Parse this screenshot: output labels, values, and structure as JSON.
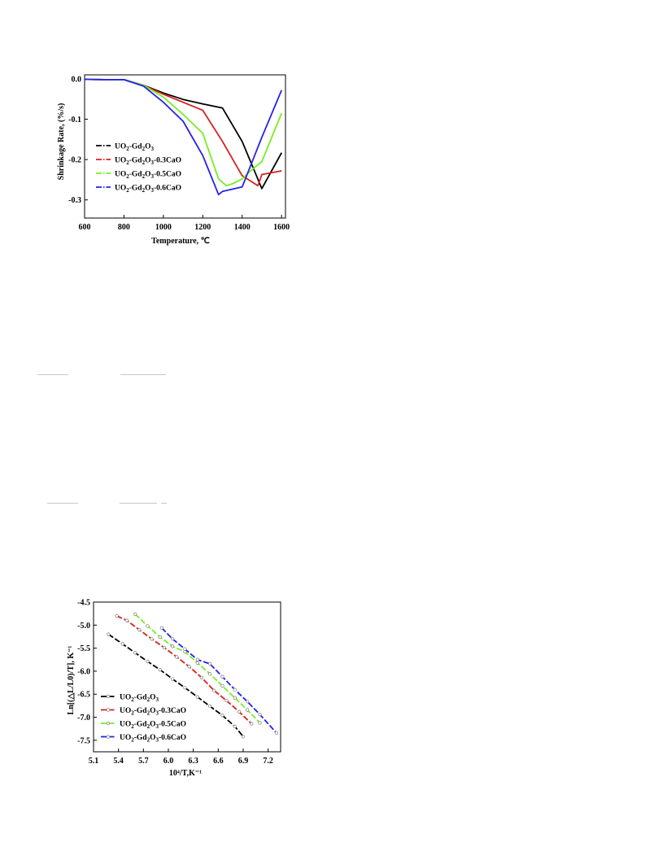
{
  "colors": {
    "black": "#000000",
    "red": "#d62020",
    "green": "#77ee22",
    "blue": "#2222ee"
  },
  "chart_data": [
    {
      "type": "line",
      "title": "",
      "xlabel": "Temperature, ℃",
      "ylabel": "Shrinkage Rate, (%/s)",
      "xlim": [
        600,
        1620
      ],
      "ylim": [
        -0.345,
        0.01
      ],
      "xticks": [
        "600",
        "800",
        "1000",
        "1200",
        "1400",
        "1600"
      ],
      "yticks": [
        "0.0",
        "-0.1",
        "-0.2",
        "-0.3"
      ],
      "legend_position": "center-left",
      "series": [
        {
          "name": "UO2-Gd2O3",
          "color": "#000000",
          "x": [
            600,
            700,
            800,
            900,
            1000,
            1100,
            1200,
            1300,
            1400,
            1500,
            1600
          ],
          "y": [
            -0.001,
            -0.002,
            -0.002,
            -0.016,
            -0.035,
            -0.051,
            -0.062,
            -0.072,
            -0.155,
            -0.272,
            -0.183
          ]
        },
        {
          "name": "UO2-Gd2O3-0.3CaO",
          "color": "#d62020",
          "x": [
            600,
            700,
            800,
            900,
            1000,
            1100,
            1200,
            1300,
            1400,
            1480,
            1500,
            1600
          ],
          "y": [
            -0.001,
            -0.002,
            -0.002,
            -0.016,
            -0.038,
            -0.058,
            -0.078,
            -0.155,
            -0.24,
            -0.265,
            -0.237,
            -0.228
          ]
        },
        {
          "name": "UO2-Gd2O3-0.5CaO",
          "color": "#77ee22",
          "x": [
            600,
            700,
            800,
            900,
            1000,
            1100,
            1200,
            1280,
            1320,
            1350,
            1400,
            1450,
            1500,
            1600
          ],
          "y": [
            -0.001,
            -0.002,
            -0.002,
            -0.016,
            -0.045,
            -0.088,
            -0.135,
            -0.248,
            -0.265,
            -0.26,
            -0.248,
            -0.225,
            -0.205,
            -0.085
          ]
        },
        {
          "name": "UO2-Gd2O3-0.6CaO",
          "color": "#2222ee",
          "x": [
            600,
            700,
            800,
            900,
            1000,
            1100,
            1200,
            1280,
            1300,
            1400,
            1500,
            1600
          ],
          "y": [
            -0.001,
            -0.002,
            -0.002,
            -0.018,
            -0.058,
            -0.105,
            -0.19,
            -0.287,
            -0.279,
            -0.268,
            -0.145,
            -0.028
          ]
        }
      ]
    },
    {
      "type": "line",
      "title": "",
      "xlabel": "10⁴/T,K⁻¹",
      "ylabel": "Ln[(△L/L0)/T], K⁻¹",
      "xlim": [
        5.1,
        7.35
      ],
      "ylim": [
        -7.75,
        -4.5
      ],
      "xticks": [
        "5.1",
        "5.4",
        "5.7",
        "6.0",
        "6.3",
        "6.6",
        "6.9",
        "7.2"
      ],
      "yticks": [
        "-4.5",
        "-5.0",
        "-5.5",
        "-6.0",
        "-6.5",
        "-7.0",
        "-7.5"
      ],
      "legend_position": "bottom-left",
      "series": [
        {
          "name": "UO2-Gd2O3",
          "color": "#000000",
          "x": [
            5.28,
            5.45,
            5.6,
            5.75,
            5.9,
            6.05,
            6.2,
            6.35,
            6.5,
            6.65,
            6.8,
            6.9
          ],
          "y": [
            -5.2,
            -5.41,
            -5.6,
            -5.79,
            -5.97,
            -6.17,
            -6.36,
            -6.56,
            -6.76,
            -6.96,
            -7.2,
            -7.42
          ]
        },
        {
          "name": "UO2-Gd2O3-0.3CaO",
          "color": "#d62020",
          "x": [
            5.38,
            5.5,
            5.65,
            5.8,
            5.95,
            6.1,
            6.25,
            6.4,
            6.55,
            6.7,
            6.85,
            7.0
          ],
          "y": [
            -4.8,
            -4.9,
            -5.1,
            -5.3,
            -5.49,
            -5.69,
            -5.9,
            -6.14,
            -6.42,
            -6.64,
            -6.88,
            -7.14
          ]
        },
        {
          "name": "UO2-Gd2O3-0.5CaO",
          "color": "#77ee22",
          "x": [
            5.6,
            5.75,
            5.9,
            6.05,
            6.2,
            6.35,
            6.5,
            6.65,
            6.8,
            6.95,
            7.1
          ],
          "y": [
            -4.76,
            -5.02,
            -5.26,
            -5.46,
            -5.58,
            -5.82,
            -6.06,
            -6.32,
            -6.58,
            -6.84,
            -7.12
          ]
        },
        {
          "name": "UO2-Gd2O3-0.6CaO",
          "color": "#2222ee",
          "x": [
            5.92,
            6.05,
            6.2,
            6.35,
            6.5,
            6.65,
            6.8,
            6.95,
            7.1,
            7.3
          ],
          "y": [
            -5.06,
            -5.3,
            -5.52,
            -5.75,
            -5.84,
            -6.12,
            -6.4,
            -6.66,
            -6.94,
            -7.34
          ]
        }
      ]
    }
  ]
}
